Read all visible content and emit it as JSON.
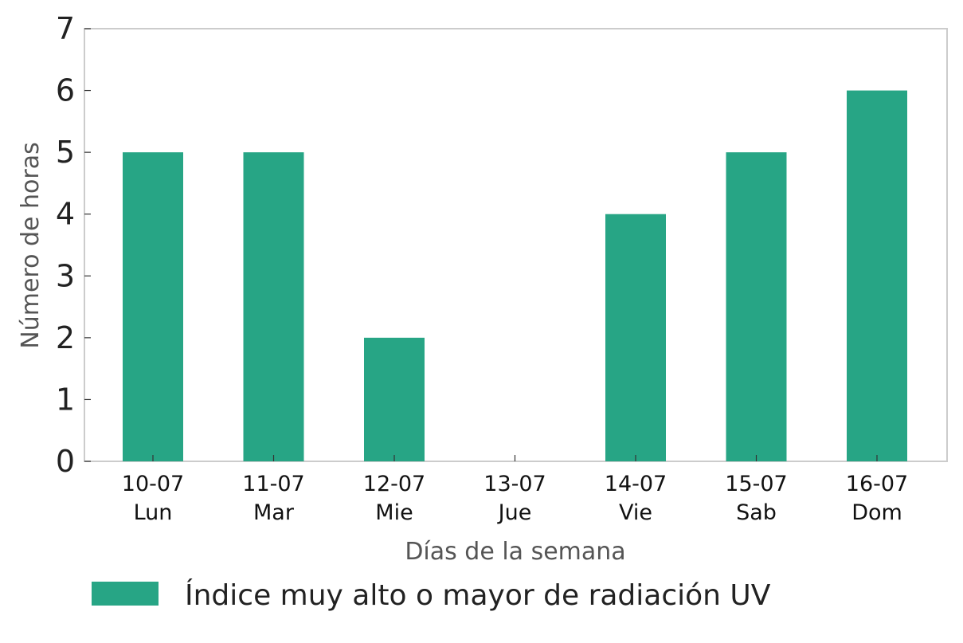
{
  "chart_data": {
    "type": "bar",
    "categories": [
      [
        "10-07",
        "Lun"
      ],
      [
        "11-07",
        "Mar"
      ],
      [
        "12-07",
        "Mie"
      ],
      [
        "13-07",
        "Jue"
      ],
      [
        "14-07",
        "Vie"
      ],
      [
        "15-07",
        "Sab"
      ],
      [
        "16-07",
        "Dom"
      ]
    ],
    "series": [
      {
        "name": "Índice muy alto o mayor de radiación UV",
        "values": [
          5,
          5,
          2,
          0,
          4,
          5,
          6
        ],
        "color": "#27a585"
      }
    ],
    "xlabel": "Días de la semana",
    "ylabel": "Número de horas",
    "ylim": [
      0,
      7
    ],
    "yticks": [
      0,
      1,
      2,
      3,
      4,
      5,
      6,
      7
    ],
    "grid": false,
    "legend_position": "bottom"
  }
}
